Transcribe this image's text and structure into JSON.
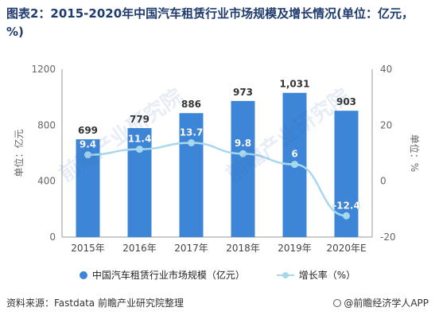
{
  "title": "图表2：2015-2020年中国汽车租赁行业市场规模及增长情况(单位：亿元，%)",
  "watermark_text": "前瞻产业研究院",
  "footer": {
    "source": "资料来源：Fastdata 前瞻产业研究院整理",
    "brand": "@前瞻经济学人APP"
  },
  "colors": {
    "bar": "#3d85d6",
    "line": "#a8d8ec",
    "axis": "#666666"
  },
  "chart_data": {
    "type": "bar",
    "categories": [
      "2015年",
      "2016年",
      "2017年",
      "2018年",
      "2019年",
      "2020年E"
    ],
    "series": [
      {
        "name": "中国汽车租赁行业市场规模（亿元）",
        "type": "bar",
        "axis": "left",
        "values": [
          699,
          779,
          886,
          973,
          1031,
          903
        ],
        "labels": [
          "699",
          "779",
          "886",
          "973",
          "1,031",
          "903"
        ]
      },
      {
        "name": "增长率（%）",
        "type": "line",
        "axis": "right",
        "values": [
          9.4,
          11.4,
          13.7,
          9.8,
          6,
          -12.4
        ],
        "labels": [
          "9.4",
          "11.4",
          "13.7",
          "9.8",
          "6",
          "-12.4"
        ]
      }
    ],
    "ylabel": "单位：亿元",
    "y2label": "单位：%",
    "ylim": [
      0,
      1200
    ],
    "y2lim": [
      -20,
      40
    ],
    "yticks": [
      "0",
      "400",
      "800",
      "1200"
    ],
    "y2ticks": [
      "-20",
      "0",
      "20",
      "40"
    ],
    "legend": "bottom",
    "grid": false
  }
}
